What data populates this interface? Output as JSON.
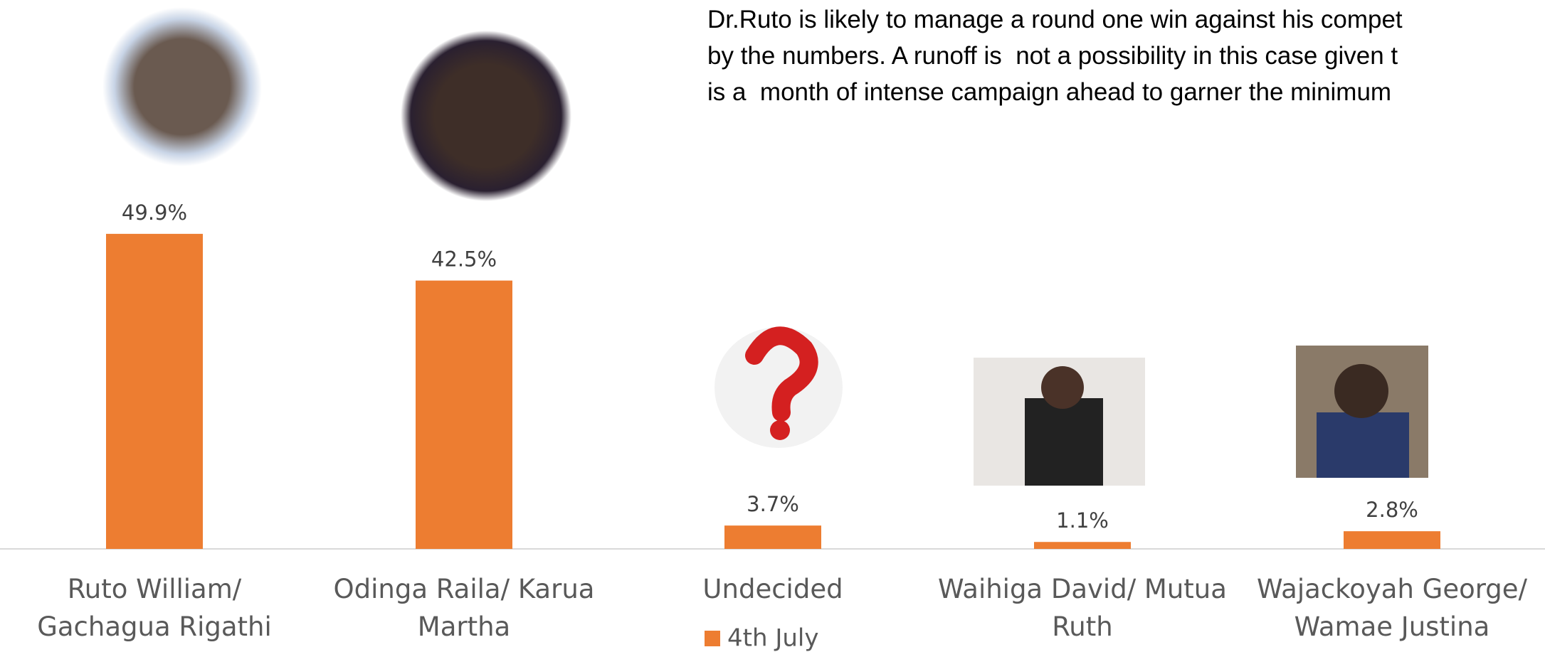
{
  "chart_data": {
    "type": "bar",
    "annotations": [
      "Dr.Ruto is likely to manage a round one win against his compet",
      "by the numbers. A runoff is  not a possibility in this case given t",
      "is a  month of intense campaign ahead to garner the minimum"
    ],
    "categories": [
      "Ruto William/ Gachagua Rigathi",
      "Odinga Raila/ Karua Martha",
      "Undecided",
      "Waihiga David/ Mutua Ruth",
      "Wajackoyah George/ Wamae Justina"
    ],
    "series": [
      {
        "name": "4th July",
        "color": "#ed7d31",
        "values": [
          49.9,
          42.5,
          3.7,
          1.1,
          2.8
        ],
        "value_labels": [
          "49.9%",
          "42.5%",
          "3.7%",
          "1.1%",
          "2.8%"
        ]
      }
    ]
  }
}
